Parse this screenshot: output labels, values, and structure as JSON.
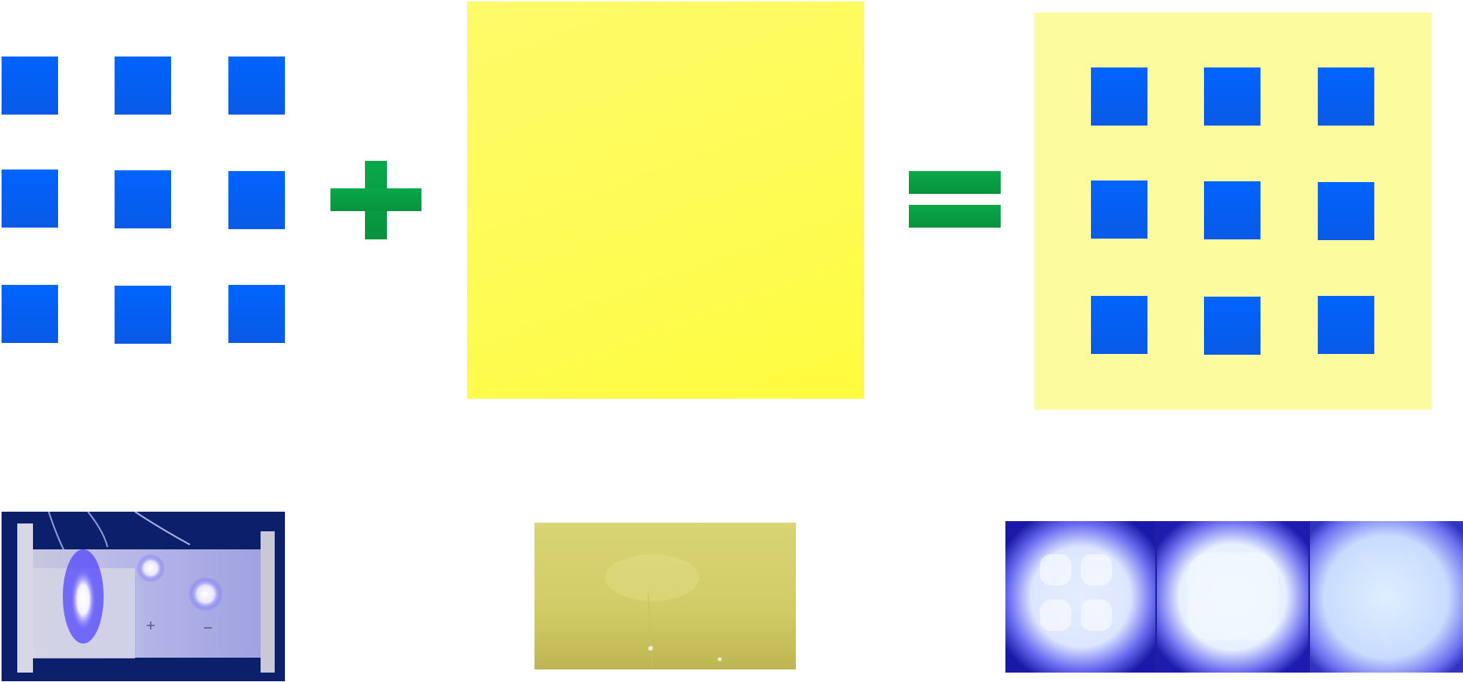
{
  "colors": {
    "led_blue": "#0064ff",
    "phosphor_yellow": "#fefb55",
    "combined_background": "#fcfc9e",
    "operator_green": "#0aa84a",
    "phosphor_photo": "#d4d06c"
  },
  "panels": {
    "led_array": {
      "grid_rows": 3,
      "grid_cols": 3
    },
    "phosphor_sheet": {},
    "combined_device": {
      "grid_rows": 3,
      "grid_cols": 3
    }
  },
  "operators": {
    "plus": "plus-sign",
    "equals": "equals-sign"
  },
  "photos": [
    {
      "name": "led-board-photo"
    },
    {
      "name": "phosphor-film-photo"
    },
    {
      "name": "emission-photos",
      "tiles": 3
    }
  ]
}
